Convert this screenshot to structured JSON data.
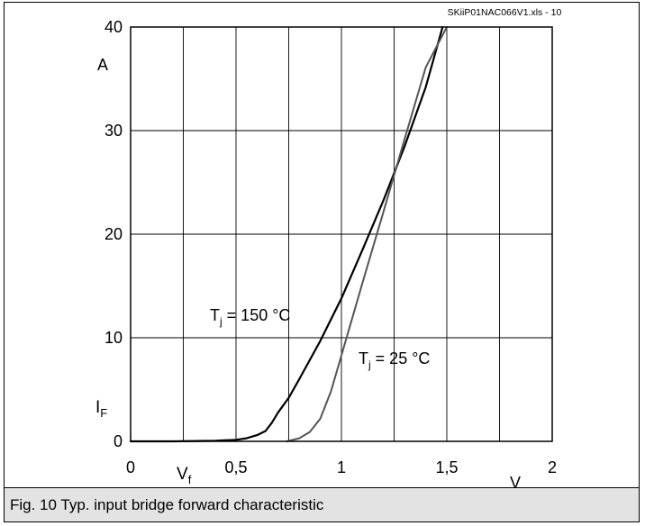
{
  "chart_data": {
    "type": "line",
    "title": "",
    "source_tag": "SKiiP01NAC066V1.xls - 10",
    "xlim": [
      0,
      2
    ],
    "ylim": [
      0,
      40
    ],
    "x_ticks": [
      "0",
      "0,5",
      "1",
      "1,5",
      "2"
    ],
    "y_ticks": [
      "0",
      "10",
      "20",
      "30",
      "40"
    ],
    "xlabel": "V",
    "xunit": "V",
    "ylabel": "I",
    "ylabel_sub": "F",
    "yunit": "A",
    "grid": true,
    "series": [
      {
        "name": "T",
        "name_sub": "j",
        "name_rest": " = 150 °C",
        "color": "#000000",
        "x": [
          0.0,
          0.2,
          0.4,
          0.5,
          0.55,
          0.6,
          0.64,
          0.67,
          0.7,
          0.75,
          0.8,
          0.9,
          1.0,
          1.1,
          1.2,
          1.3,
          1.4,
          1.48
        ],
        "y": [
          0.0,
          0.0,
          0.05,
          0.15,
          0.3,
          0.6,
          1.0,
          1.8,
          2.8,
          4.2,
          6.0,
          9.7,
          13.8,
          18.5,
          23.3,
          28.5,
          34.2,
          40.0
        ]
      },
      {
        "name": "T",
        "name_sub": "j",
        "name_rest": " = 25 °C",
        "color": "#555555",
        "x": [
          0.74,
          0.8,
          0.85,
          0.9,
          0.95,
          1.0,
          1.05,
          1.1,
          1.2,
          1.3,
          1.4,
          1.5
        ],
        "y": [
          0.0,
          0.3,
          0.9,
          2.2,
          4.8,
          8.3,
          11.8,
          15.3,
          22.2,
          29.2,
          36.1,
          40.0
        ]
      }
    ],
    "axis_labels": {
      "x_symbol": "V",
      "x_symbol_sub": "f"
    }
  },
  "caption": "Fig. 10 Typ. input bridge forward characteristic"
}
